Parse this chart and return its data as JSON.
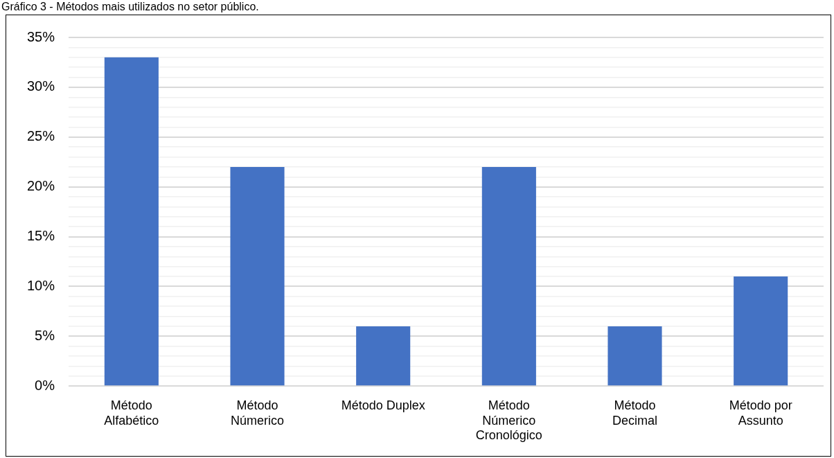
{
  "chart_data": {
    "type": "bar",
    "title": "Gráfico 3 - Métodos mais utilizados no setor público.",
    "categories": [
      "Método\nAlfabético",
      "Método\nNúmerico",
      "Método Duplex",
      "Método\nNúmerico\nCronológico",
      "Método\nDecimal",
      "Método por\nAssunto"
    ],
    "values": [
      33,
      22,
      6,
      22,
      6,
      11
    ],
    "color": "#4472c4",
    "ylim": [
      0,
      35
    ],
    "yticks": [
      {
        "value": 0,
        "label": "0%"
      },
      {
        "value": 1,
        "label": null
      },
      {
        "value": 2,
        "label": null
      },
      {
        "value": 3,
        "label": null
      },
      {
        "value": 4,
        "label": null
      },
      {
        "value": 5,
        "label": "5%"
      },
      {
        "value": 6,
        "label": null
      },
      {
        "value": 7,
        "label": null
      },
      {
        "value": 8,
        "label": null
      },
      {
        "value": 9,
        "label": null
      },
      {
        "value": 10,
        "label": "10%"
      },
      {
        "value": 11,
        "label": null
      },
      {
        "value": 12,
        "label": null
      },
      {
        "value": 13,
        "label": null
      },
      {
        "value": 14,
        "label": null
      },
      {
        "value": 15,
        "label": "15%"
      },
      {
        "value": 16,
        "label": null
      },
      {
        "value": 17,
        "label": null
      },
      {
        "value": 18,
        "label": null
      },
      {
        "value": 19,
        "label": null
      },
      {
        "value": 20,
        "label": "20%"
      },
      {
        "value": 21,
        "label": null
      },
      {
        "value": 22,
        "label": null
      },
      {
        "value": 23,
        "label": null
      },
      {
        "value": 24,
        "label": null
      },
      {
        "value": 25,
        "label": "25%"
      },
      {
        "value": 26,
        "label": null
      },
      {
        "value": 27,
        "label": null
      },
      {
        "value": 28,
        "label": null
      },
      {
        "value": 29,
        "label": null
      },
      {
        "value": 30,
        "label": "30%"
      },
      {
        "value": 31,
        "label": null
      },
      {
        "value": 32,
        "label": null
      },
      {
        "value": 33,
        "label": null
      },
      {
        "value": 34,
        "label": null
      },
      {
        "value": 35,
        "label": "35%"
      }
    ],
    "grid": "y"
  }
}
